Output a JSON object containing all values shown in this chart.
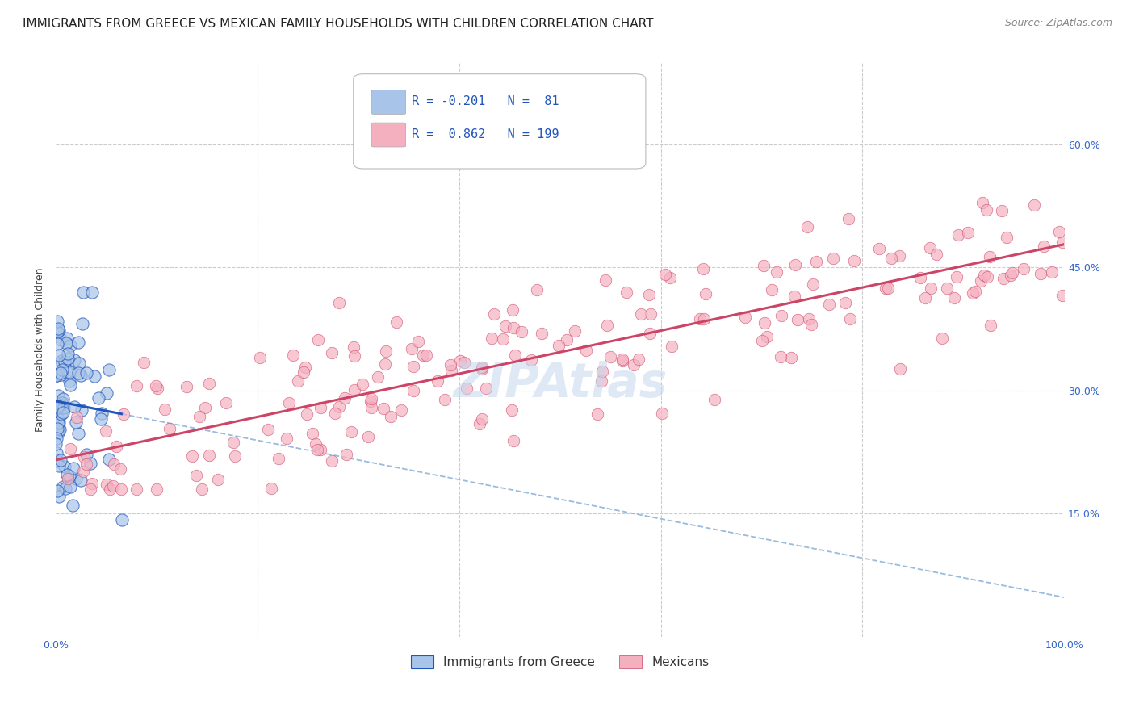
{
  "title": "IMMIGRANTS FROM GREECE VS MEXICAN FAMILY HOUSEHOLDS WITH CHILDREN CORRELATION CHART",
  "source": "Source: ZipAtlas.com",
  "ylabel": "Family Households with Children",
  "watermark": "ZIPAtlas",
  "legend_blue_R": "-0.201",
  "legend_blue_N": "81",
  "legend_pink_R": "0.862",
  "legend_pink_N": "199",
  "legend_blue_label": "Immigrants from Greece",
  "legend_pink_label": "Mexicans",
  "blue_color": "#a8c4e8",
  "pink_color": "#f5b0c0",
  "blue_line_color": "#2255bb",
  "pink_line_color": "#cc4466",
  "dashed_line_color": "#99bbdd",
  "title_fontsize": 11,
  "source_fontsize": 9,
  "axis_label_fontsize": 9,
  "tick_fontsize": 9,
  "legend_fontsize": 11,
  "grid_color": "#cccccc",
  "background_color": "#ffffff",
  "seed_blue": 42,
  "seed_pink": 77,
  "blue_n": 81,
  "pink_n": 199,
  "blue_R": -0.201,
  "pink_R": 0.862,
  "xmin": 0.0,
  "xmax": 1.0,
  "ymin": 0.0,
  "ymax": 0.7
}
